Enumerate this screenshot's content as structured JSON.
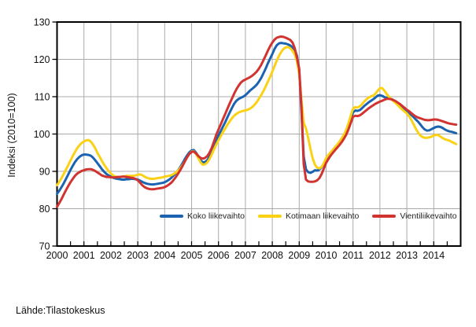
{
  "footer": {
    "source": "Lähde:Tilastokeskus"
  },
  "axis": {
    "y_title": "Indeksi (2010=100)",
    "y_ticks": [
      70,
      80,
      90,
      100,
      110,
      120,
      130
    ],
    "x_ticks": [
      "2000",
      "2001",
      "2002",
      "2003",
      "2004",
      "2005",
      "2006",
      "2007",
      "2008",
      "2009",
      "2010",
      "2011",
      "2012",
      "2013",
      "2014"
    ]
  },
  "colors": {
    "grid": "#ababab",
    "frame": "#000000",
    "blue": "#1b63b0",
    "yellow": "#fbd116",
    "red": "#d13430"
  },
  "chart_data": {
    "type": "line",
    "title": "",
    "xlabel": "",
    "ylabel": "Indeksi (2010=100)",
    "ylim": [
      70,
      130
    ],
    "xlim_years": [
      2000,
      2015
    ],
    "grid": true,
    "legend_position": "bottom-inside",
    "x_start_year": 2000,
    "points_per_year": 12,
    "series": [
      {
        "name": "Koko liikevaihto",
        "color": "#1b63b0",
        "values": [
          84.0,
          84.8,
          85.8,
          86.8,
          88.0,
          89.2,
          90.4,
          91.5,
          92.5,
          93.3,
          93.9,
          94.3,
          94.5,
          94.5,
          94.4,
          94.2,
          93.7,
          93.0,
          92.2,
          91.4,
          90.6,
          89.9,
          89.3,
          88.9,
          88.6,
          88.3,
          88.1,
          88.0,
          87.9,
          87.8,
          87.8,
          87.9,
          87.9,
          88.0,
          88.0,
          87.9,
          87.8,
          87.5,
          87.2,
          86.9,
          86.7,
          86.6,
          86.5,
          86.5,
          86.6,
          86.7,
          86.8,
          86.9,
          87.1,
          87.4,
          87.8,
          88.3,
          88.9,
          89.6,
          90.3,
          91.2,
          92.2,
          93.3,
          94.3,
          95.1,
          95.6,
          95.7,
          95.0,
          94.0,
          93.0,
          92.4,
          92.5,
          93.0,
          94.0,
          95.4,
          97.0,
          98.4,
          99.6,
          100.8,
          102.0,
          103.2,
          104.5,
          105.8,
          107.0,
          108.1,
          108.9,
          109.4,
          109.7,
          110.0,
          110.4,
          111.0,
          111.6,
          112.1,
          112.6,
          113.2,
          114.0,
          115.0,
          116.2,
          117.5,
          118.9,
          120.2,
          121.4,
          122.8,
          123.8,
          124.3,
          124.4,
          124.3,
          124.2,
          124.0,
          123.7,
          123.2,
          122.5,
          121.0,
          117.0,
          106.0,
          94.0,
          90.5,
          89.8,
          89.6,
          89.9,
          90.3,
          90.2,
          90.5,
          91.1,
          92.0,
          93.0,
          93.8,
          94.6,
          95.3,
          96.0,
          96.7,
          97.4,
          98.2,
          99.2,
          100.3,
          101.8,
          103.8,
          105.8,
          106.3,
          106.2,
          106.4,
          106.9,
          107.5,
          108.0,
          108.5,
          108.9,
          109.3,
          109.8,
          110.3,
          110.4,
          110.2,
          109.9,
          109.7,
          109.6,
          109.4,
          109.1,
          108.7,
          108.2,
          107.7,
          107.2,
          106.7,
          106.2,
          105.7,
          105.1,
          104.5,
          103.9,
          103.3,
          102.6,
          101.8,
          101.2,
          100.9,
          101.0,
          101.3,
          101.6,
          101.9,
          102.0,
          101.9,
          101.6,
          101.2,
          100.9,
          100.7,
          100.6,
          100.4,
          100.2
        ]
      },
      {
        "name": "Kotimaan liikevaihto",
        "color": "#fbd116",
        "values": [
          86.3,
          87.2,
          88.2,
          89.3,
          90.5,
          91.7,
          92.9,
          94.1,
          95.2,
          96.2,
          97.0,
          97.6,
          98.0,
          98.3,
          98.4,
          98.0,
          97.2,
          96.2,
          95.0,
          93.9,
          92.8,
          91.8,
          90.9,
          90.1,
          89.4,
          88.9,
          88.6,
          88.5,
          88.5,
          88.6,
          88.7,
          88.8,
          88.8,
          88.8,
          88.8,
          88.9,
          89.1,
          89.2,
          89.0,
          88.6,
          88.3,
          88.1,
          88.0,
          88.0,
          88.1,
          88.2,
          88.3,
          88.4,
          88.6,
          88.7,
          88.8,
          89.0,
          89.3,
          89.7,
          90.2,
          90.9,
          91.7,
          92.7,
          93.7,
          94.7,
          95.3,
          95.4,
          94.6,
          93.5,
          92.4,
          91.8,
          91.9,
          92.4,
          93.3,
          94.5,
          95.9,
          97.2,
          98.3,
          99.4,
          100.5,
          101.5,
          102.5,
          103.4,
          104.2,
          104.9,
          105.4,
          105.8,
          106.0,
          106.2,
          106.3,
          106.5,
          106.8,
          107.2,
          107.8,
          108.5,
          109.4,
          110.4,
          111.5,
          112.7,
          114.0,
          115.3,
          116.7,
          118.2,
          119.7,
          121.0,
          122.0,
          122.8,
          123.2,
          123.3,
          123.0,
          122.3,
          121.3,
          119.5,
          116.0,
          109.0,
          103.0,
          101.5,
          99.0,
          96.0,
          93.5,
          91.8,
          91.0,
          90.8,
          91.2,
          92.2,
          93.6,
          94.4,
          95.1,
          95.8,
          96.5,
          97.2,
          98.0,
          98.9,
          99.9,
          101.2,
          103.0,
          105.0,
          106.8,
          107.2,
          107.1,
          107.4,
          108.0,
          108.7,
          109.3,
          109.8,
          110.1,
          110.3,
          110.8,
          111.6,
          112.3,
          112.3,
          111.6,
          110.7,
          110.0,
          109.4,
          108.8,
          108.3,
          107.7,
          107.1,
          106.5,
          106.0,
          105.5,
          104.8,
          103.8,
          102.6,
          101.4,
          100.4,
          99.6,
          99.2,
          99.0,
          99.0,
          99.1,
          99.3,
          99.6,
          99.8,
          99.7,
          99.3,
          98.9,
          98.6,
          98.4,
          98.2,
          97.9,
          97.6,
          97.3
        ]
      },
      {
        "name": "Vientiliikevaihto",
        "color": "#d13430",
        "values": [
          80.5,
          81.5,
          82.6,
          83.8,
          85.0,
          86.1,
          87.1,
          88.0,
          88.8,
          89.4,
          89.8,
          90.1,
          90.3,
          90.5,
          90.6,
          90.6,
          90.4,
          90.1,
          89.7,
          89.3,
          88.9,
          88.7,
          88.5,
          88.5,
          88.4,
          88.4,
          88.4,
          88.5,
          88.5,
          88.6,
          88.6,
          88.5,
          88.4,
          88.3,
          88.2,
          88.0,
          87.6,
          87.0,
          86.3,
          85.8,
          85.5,
          85.3,
          85.2,
          85.2,
          85.3,
          85.4,
          85.5,
          85.6,
          85.8,
          86.1,
          86.5,
          87.0,
          87.7,
          88.5,
          89.4,
          90.4,
          91.5,
          92.7,
          93.8,
          94.7,
          95.2,
          95.3,
          94.8,
          94.1,
          93.6,
          93.4,
          93.6,
          94.1,
          95.0,
          96.3,
          98.0,
          99.8,
          101.2,
          102.6,
          104.0,
          105.4,
          106.8,
          108.2,
          109.5,
          110.8,
          112.0,
          113.0,
          113.8,
          114.3,
          114.6,
          114.9,
          115.2,
          115.6,
          116.1,
          116.7,
          117.5,
          118.5,
          119.7,
          121.0,
          122.3,
          123.5,
          124.5,
          125.3,
          125.8,
          126.0,
          126.1,
          126.0,
          125.8,
          125.5,
          125.2,
          124.5,
          123.0,
          120.5,
          117.5,
          107.0,
          92.0,
          87.8,
          87.3,
          87.2,
          87.2,
          87.3,
          87.6,
          88.2,
          89.3,
          90.8,
          92.3,
          93.3,
          94.2,
          95.0,
          95.7,
          96.4,
          97.1,
          97.9,
          98.8,
          99.9,
          101.3,
          103.0,
          104.6,
          104.9,
          104.8,
          105.0,
          105.4,
          105.9,
          106.4,
          106.9,
          107.3,
          107.7,
          108.1,
          108.4,
          108.7,
          108.9,
          109.2,
          109.4,
          109.4,
          109.3,
          109.1,
          108.8,
          108.4,
          108.0,
          107.5,
          107.0,
          106.5,
          106.1,
          105.6,
          105.1,
          104.7,
          104.4,
          104.2,
          104.0,
          103.8,
          103.7,
          103.7,
          103.8,
          103.9,
          103.9,
          103.8,
          103.6,
          103.4,
          103.2,
          103.0,
          102.8,
          102.7,
          102.6,
          102.5
        ]
      }
    ]
  }
}
